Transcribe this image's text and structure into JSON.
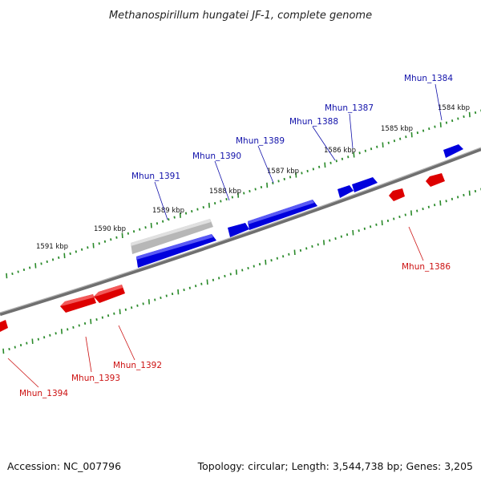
{
  "title": "Methanospirillum hungatei JF-1, complete genome",
  "footer": {
    "accession": "Accession: NC_007796",
    "summary": "Topology: circular; Length: 3,544,738 bp; Genes: 3,205"
  },
  "colors": {
    "forward_gene": "#1a1aee",
    "reverse_gene": "#ee1a1a",
    "pseudo_gene": "#bdbdbd",
    "tick": "#2a8a2a",
    "backbone": "#8a8a8a",
    "forward_label": "#1111aa",
    "reverse_label": "#cc1111"
  },
  "kbp_labels": [
    "1584 kbp",
    "1585 kbp",
    "1586 kbp",
    "1587 kbp",
    "1588 kbp",
    "1589 kbp",
    "1590 kbp",
    "1591 kbp"
  ],
  "genes": {
    "forward": [
      "Mhun_1384",
      "Mhun_1387",
      "Mhun_1388",
      "Mhun_1389",
      "Mhun_1390",
      "Mhun_1391"
    ],
    "reverse": [
      "Mhun_1386",
      "Mhun_1392",
      "Mhun_1393",
      "Mhun_1394"
    ]
  }
}
